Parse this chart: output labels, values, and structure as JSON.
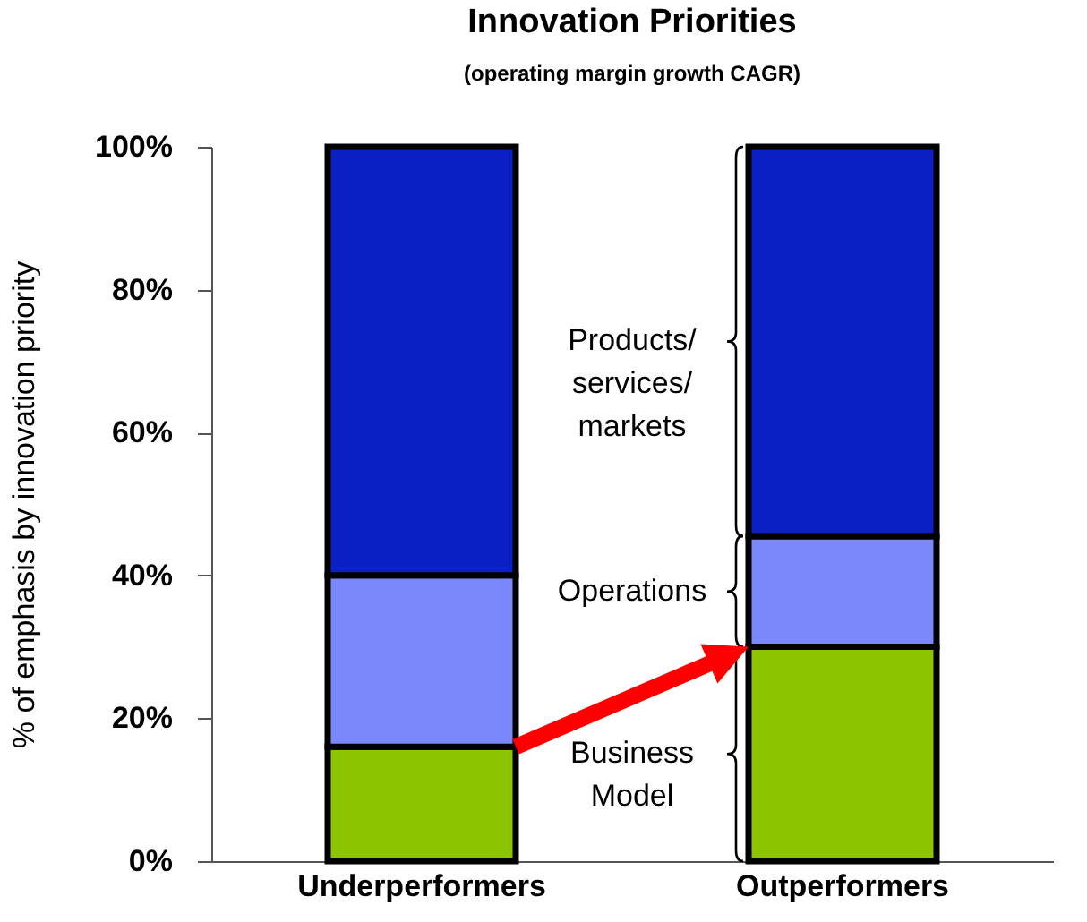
{
  "chart_data": {
    "type": "bar",
    "title": "Innovation Priorities",
    "subtitle": "(operating margin growth CAGR)",
    "ylabel": "% of emphasis by innovation priority",
    "categories": [
      "Underperformers",
      "Outperformers"
    ],
    "stacked": true,
    "legend": false,
    "grid": false,
    "series": [
      {
        "name": "Business Model",
        "color": "#8dc400",
        "values": [
          16,
          30
        ]
      },
      {
        "name": "Operations",
        "color": "#7b88fb",
        "values": [
          24,
          15.5
        ]
      },
      {
        "name": "Products/ services/ markets",
        "color": "#0a1fc4",
        "values": [
          60,
          54.5
        ]
      }
    ],
    "ylim": [
      0,
      100
    ],
    "yticks": [
      {
        "value": 0,
        "label": "0%"
      },
      {
        "value": 20,
        "label": "20%"
      },
      {
        "value": 40,
        "label": "40%"
      },
      {
        "value": 60,
        "label": "60%"
      },
      {
        "value": 80,
        "label": "80%"
      },
      {
        "value": 100,
        "label": "100%"
      }
    ]
  }
}
